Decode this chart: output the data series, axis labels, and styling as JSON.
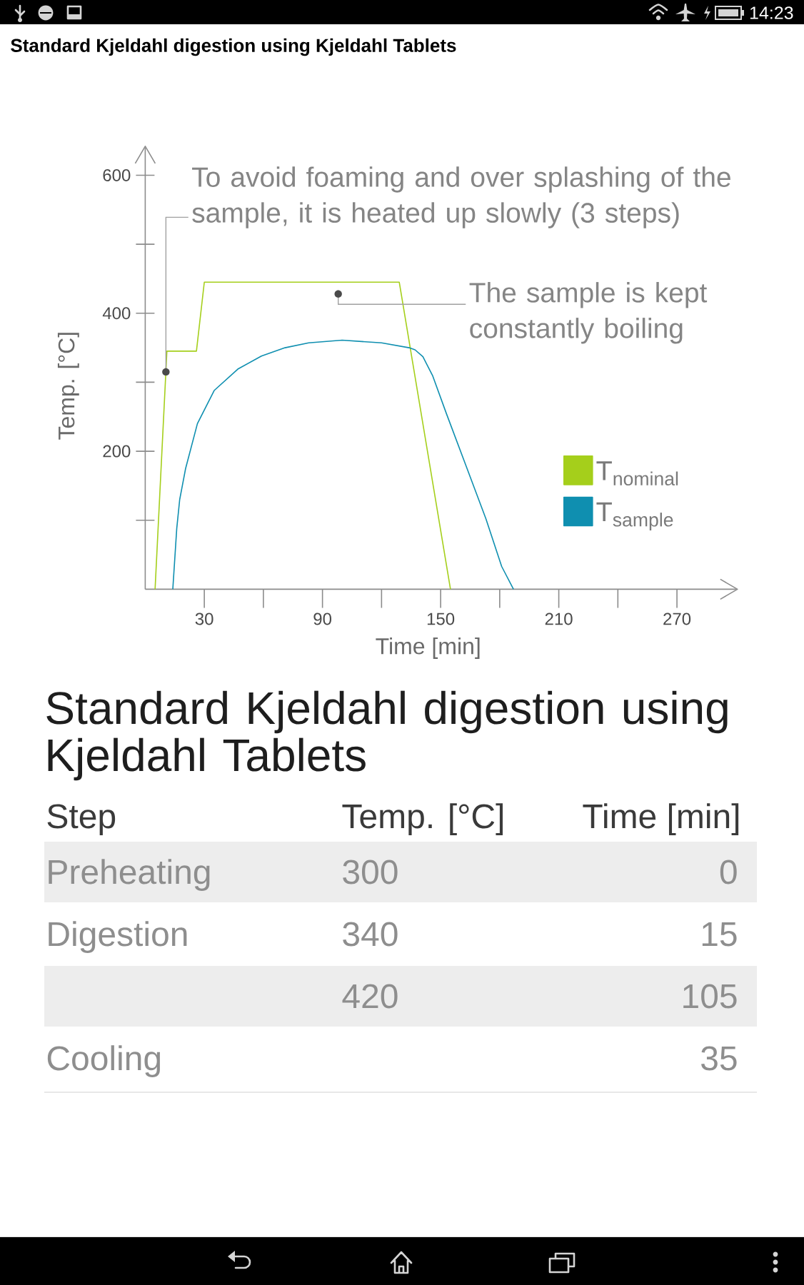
{
  "chart_data": [
    {
      "type": "line",
      "title": "Standard Kjeldahl digestion using Kjeldahl Tablets",
      "xlabel": "Time [min]",
      "ylabel": "Temp. [°C]",
      "xlim": [
        0,
        300
      ],
      "ylim": [
        0,
        640
      ],
      "xticks": [
        30,
        {
          "value": 60,
          "label": null
        },
        90,
        {
          "value": 120,
          "label": null
        },
        150,
        {
          "value": 180,
          "label": null
        },
        210,
        {
          "value": 240,
          "label": null
        },
        270
      ],
      "yticks": [
        {
          "value": 100,
          "label": null
        },
        200,
        {
          "value": 300,
          "label": null
        },
        400,
        {
          "value": 500,
          "label": null
        },
        600
      ],
      "series": [
        {
          "name": "T$_{nominal}$",
          "color": "#a5cf1b",
          "x": [
            5,
            11,
            26,
            30,
            129,
            155
          ],
          "values": [
            0,
            345,
            345,
            445,
            445,
            0
          ]
        },
        {
          "name": "T$_{sample}$",
          "color": "#0f8fb0",
          "x": [
            14,
            16,
            17.5,
            20.5,
            26.5,
            35,
            47,
            59,
            71,
            83,
            100,
            120,
            134,
            137,
            141,
            146,
            153,
            163,
            173,
            181,
            187
          ],
          "values": [
            0,
            88,
            130,
            175,
            240,
            288,
            319,
            338,
            350,
            357,
            361,
            357,
            350,
            347,
            337,
            309,
            254,
            178,
            102,
            33,
            0
          ]
        }
      ],
      "legend": "bottom right",
      "annotations": [
        {
          "text": "To avoid foaming and over splashing of the sample, it is heated up slowly (3 steps)",
          "x": 10.5,
          "y": 315
        },
        {
          "text": "The sample is kept constantly boiling",
          "x": 98,
          "y": 428
        },
        "14:23"
      ]
    },
    {
      "type": "other",
      "title": "Standard Kjeldahl digestion using Kjeldahl Tablets",
      "legend_title": "Step",
      "categories": [
        "Temp. [°C]",
        "Time [min]"
      ],
      "series": [
        {
          "name": "Preheating",
          "values": [
            300,
            0
          ]
        },
        {
          "name": "Digestion",
          "values": [
            340,
            15
          ]
        },
        {
          "values": [
            420,
            105
          ]
        },
        {
          "name": "Cooling",
          "values": [
            null,
            35
          ]
        }
      ],
      "data_labels": true
    }
  ]
}
